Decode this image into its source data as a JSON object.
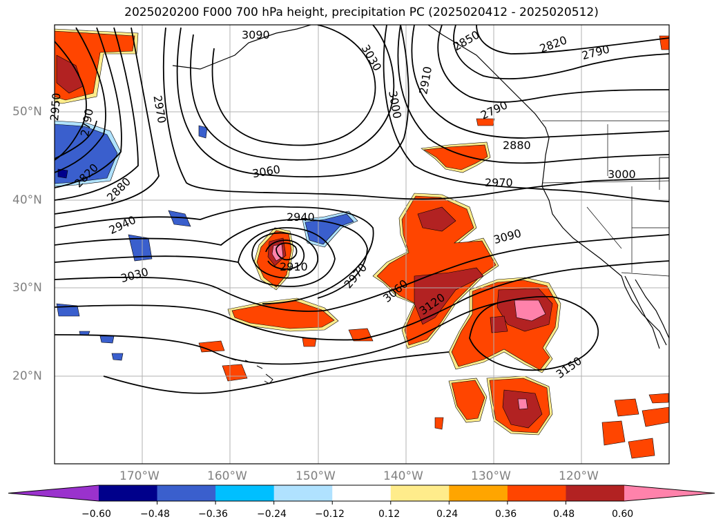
{
  "title": "2025020200 F000 700 hPa height, precipitation PC (2025020412 - 2025020512)",
  "lat_labels": [
    "50°N",
    "40°N",
    "30°N",
    "20°N"
  ],
  "lon_labels": [
    "170°W",
    "160°W",
    "150°W",
    "140°W",
    "130°W",
    "120°W"
  ],
  "colorbar": {
    "ticks": [
      "−0.60",
      "−0.48",
      "−0.36",
      "−0.24",
      "−0.12",
      "0.12",
      "0.24",
      "0.36",
      "0.48",
      "0.60"
    ],
    "colors": [
      "#9a32cd",
      "#00008b",
      "#3a5fcd",
      "#00bfff",
      "#b0e2ff",
      "#ffffff",
      "#ffec8b",
      "#ffa500",
      "#ff4500",
      "#b22222",
      "#ff82ab"
    ],
    "extend": "both"
  },
  "contour_labels": [
    "3090",
    "3030",
    "3000",
    "2910",
    "2850",
    "2820",
    "2790",
    "2970",
    "2790",
    "2880",
    "2970",
    "3000",
    "2950",
    "2790",
    "2820",
    "2880",
    "2940",
    "3030",
    "3060",
    "2940",
    "2910",
    "2970",
    "3060",
    "3120",
    "3090",
    "3150"
  ],
  "colors": {
    "contour": "#000000",
    "coast": "#000000",
    "grid": "#b0b0b0",
    "frame": "#000000"
  }
}
